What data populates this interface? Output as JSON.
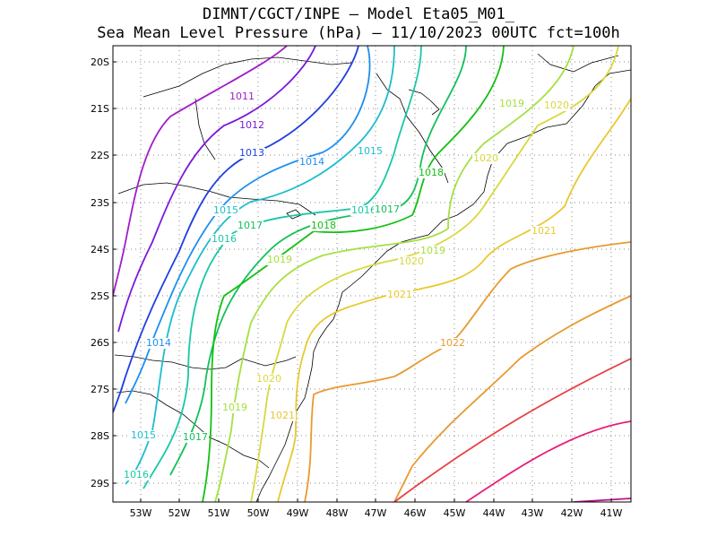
{
  "header": {
    "line1": "DIMNT/CGCT/INPE –   Model Eta05_M01_",
    "line2": "Sea Mean Level Pressure (hPa) – 11/10/2023 00UTC fct=100h"
  },
  "axes": {
    "lat_labels": [
      "20S",
      "21S",
      "22S",
      "23S",
      "24S",
      "25S",
      "26S",
      "27S",
      "28S",
      "29S"
    ],
    "lon_labels": [
      "53W",
      "52W",
      "51W",
      "50W",
      "49W",
      "48W",
      "47W",
      "46W",
      "45W",
      "44W",
      "43W",
      "42W",
      "41W"
    ]
  },
  "isobars": [
    {
      "value": "1011",
      "color": "#a01cc8"
    },
    {
      "value": "1012",
      "color": "#7a18d8"
    },
    {
      "value": "1013",
      "color": "#1f3fe0"
    },
    {
      "value": "1014",
      "color": "#1c8ff0"
    },
    {
      "value": "1015",
      "color": "#1cbcd0"
    },
    {
      "value": "1016",
      "color": "#19c7a8"
    },
    {
      "value": "1017",
      "color": "#12c05a"
    },
    {
      "value": "1018",
      "color": "#12c012"
    },
    {
      "value": "1019",
      "color": "#a6e040"
    },
    {
      "value": "1020",
      "color": "#d8d840"
    },
    {
      "value": "1021",
      "color": "#e8c830"
    },
    {
      "value": "1022",
      "color": "#e89a30"
    }
  ],
  "labels": [
    {
      "text": "1011",
      "color": "#a01cc8"
    },
    {
      "text": "1012",
      "color": "#7a18d8"
    },
    {
      "text": "1013",
      "color": "#1f3fe0"
    },
    {
      "text": "1014",
      "color": "#1c8ff0"
    },
    {
      "text": "1014",
      "color": "#1c8ff0"
    },
    {
      "text": "1015",
      "color": "#1cbcd0"
    },
    {
      "text": "1015",
      "color": "#1cbcd0"
    },
    {
      "text": "1015",
      "color": "#1cbcd0"
    },
    {
      "text": "1016",
      "color": "#19c7a8"
    },
    {
      "text": "1016",
      "color": "#19c7a8"
    },
    {
      "text": "1016",
      "color": "#19c7a8"
    },
    {
      "text": "1017",
      "color": "#12c05a"
    },
    {
      "text": "1017",
      "color": "#12c05a"
    },
    {
      "text": "1017",
      "color": "#12c05a"
    },
    {
      "text": "1018",
      "color": "#12c012"
    },
    {
      "text": "1018",
      "color": "#12c012"
    },
    {
      "text": "1019",
      "color": "#a6e040"
    },
    {
      "text": "1019",
      "color": "#a6e040"
    },
    {
      "text": "1019",
      "color": "#a6e040"
    },
    {
      "text": "1019",
      "color": "#a6e040"
    },
    {
      "text": "1020",
      "color": "#d8d840"
    },
    {
      "text": "1020",
      "color": "#d8d840"
    },
    {
      "text": "1020",
      "color": "#d8d840"
    },
    {
      "text": "1020",
      "color": "#d8d840"
    },
    {
      "text": "1021",
      "color": "#e8c830"
    },
    {
      "text": "1021",
      "color": "#e8c830"
    },
    {
      "text": "1021",
      "color": "#e8c830"
    },
    {
      "text": "1022",
      "color": "#e89a30"
    }
  ]
}
